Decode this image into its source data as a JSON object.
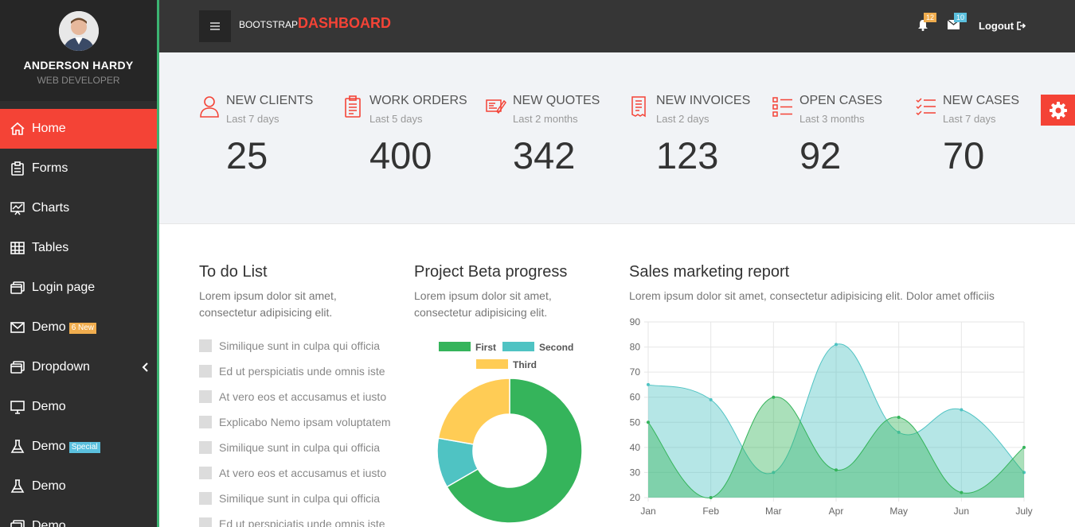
{
  "profile": {
    "name": "ANDERSON HARDY",
    "role": "WEB DEVELOPER"
  },
  "menu": [
    {
      "label": "Home",
      "icon": "home-icon",
      "active": true
    },
    {
      "label": "Forms",
      "icon": "clipboard-icon"
    },
    {
      "label": "Charts",
      "icon": "presentation-chart-icon"
    },
    {
      "label": "Tables",
      "icon": "table-icon"
    },
    {
      "label": "Login page",
      "icon": "window-icon"
    },
    {
      "label": "Demo",
      "icon": "envelope-icon",
      "badge": "6 New"
    },
    {
      "label": "Dropdown",
      "icon": "window-icon"
    },
    {
      "label": "Demo",
      "icon": "monitor-icon"
    },
    {
      "label": "Demo",
      "icon": "flask-icon",
      "badge": "Special"
    },
    {
      "label": "Demo",
      "icon": "flask-icon"
    },
    {
      "label": "Demo",
      "icon": "window-icon"
    }
  ],
  "brand": {
    "prefix": "BOOTSTRAP",
    "main": "DASHBOARD"
  },
  "topbar": {
    "notifications_count": "12",
    "messages_count": "10",
    "logout_label": "Logout"
  },
  "colors": {
    "accent": "#f44336",
    "sidebar": "#2e2e2e",
    "topbar": "#363636",
    "green": "#3cb371"
  },
  "stats": [
    {
      "title": "NEW CLIENTS",
      "sub": "Last 7 days",
      "value": "25",
      "icon": "user-icon"
    },
    {
      "title": "WORK ORDERS",
      "sub": "Last 5 days",
      "value": "400",
      "icon": "clipboard-list-icon"
    },
    {
      "title": "NEW QUOTES",
      "sub": "Last 2 months",
      "value": "342",
      "icon": "quote-pen-icon"
    },
    {
      "title": "NEW INVOICES",
      "sub": "Last 2 days",
      "value": "123",
      "icon": "invoice-icon"
    },
    {
      "title": "OPEN CASES",
      "sub": "Last 3 months",
      "value": "92",
      "icon": "checklist-icon"
    },
    {
      "title": "NEW CASES",
      "sub": "Last 7 days",
      "value": "70",
      "icon": "checked-list-icon"
    }
  ],
  "todo": {
    "title": "To do List",
    "desc_line1": "Lorem ipsum dolor sit amet,",
    "desc_line2": "consectetur adipisicing elit.",
    "items": [
      "Similique sunt in culpa qui officia",
      "Ed ut perspiciatis unde omnis iste",
      "At vero eos et accusamus et iusto",
      "Explicabo Nemo ipsam voluptatem",
      "Similique sunt in culpa qui officia",
      "At vero eos et accusamus et iusto",
      "Similique sunt in culpa qui officia",
      "Ed ut perspiciatis unde omnis iste"
    ]
  },
  "project": {
    "title": "Project Beta progress",
    "desc_line1": "Lorem ipsum dolor sit amet,",
    "desc_line2": "consectetur adipisicing elit."
  },
  "sales": {
    "title": "Sales marketing report",
    "desc": "Lorem ipsum dolor sit amet, consectetur adipisicing elit. Dolor amet officiis"
  },
  "chart_data": [
    {
      "type": "pie",
      "variant": "doughnut",
      "labels": [
        "First",
        "Second",
        "Third"
      ],
      "values": [
        300,
        50,
        100
      ],
      "colors": [
        "#35b45b",
        "#4fc3c3",
        "#ffcc55"
      ],
      "legend": "top"
    },
    {
      "type": "area",
      "categories": [
        "Jan",
        "Feb",
        "Mar",
        "Apr",
        "May",
        "Jun",
        "July"
      ],
      "series": [
        {
          "values": [
            65,
            59,
            30,
            81,
            46,
            55,
            30
          ],
          "color": "#4fc3c3"
        },
        {
          "values": [
            50,
            20,
            60,
            31,
            52,
            22,
            40
          ],
          "color": "#35b45b"
        }
      ],
      "ylim": [
        20,
        90
      ],
      "yticks": [
        20,
        30,
        40,
        50,
        60,
        70,
        80,
        90
      ],
      "grid": true
    }
  ]
}
